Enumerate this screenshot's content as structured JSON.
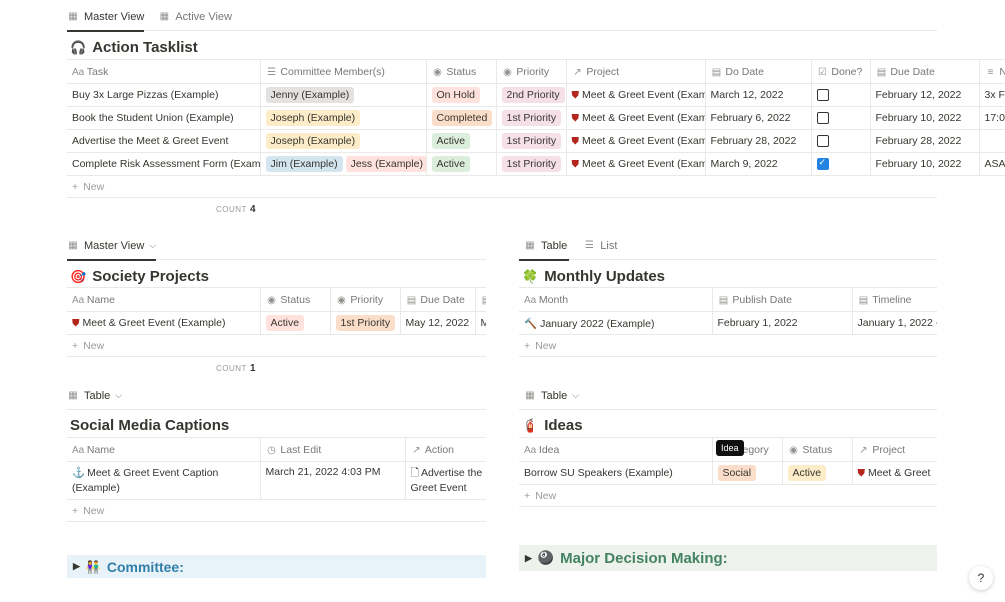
{
  "top_tabs": [
    {
      "label": "Master View",
      "icon": "table-icon"
    },
    {
      "label": "Active View",
      "icon": "table-icon"
    }
  ],
  "tasks": {
    "title": "Action Tasklist",
    "columns": [
      "Task",
      "Committee Member(s)",
      "Status",
      "Priority",
      "Project",
      "Do Date",
      "Done?",
      "Due Date",
      "N"
    ],
    "rows": [
      {
        "task": "Buy 3x Large Pizzas (Example)",
        "members": [
          "Jenny (Example)"
        ],
        "status": "On Hold",
        "priority": "2nd Priority",
        "project": "Meet & Greet Event (Exam",
        "do_date": "March 12, 2022",
        "done": false,
        "due_date": "February 12, 2022",
        "notes": "3x F"
      },
      {
        "task": "Book the Student Union (Example)",
        "members": [
          "Joseph (Example)"
        ],
        "status": "Completed",
        "priority": "1st Priority",
        "project": "Meet & Greet Event (Exam",
        "do_date": "February 6, 2022",
        "done": false,
        "due_date": "February 10, 2022",
        "notes": "17:0"
      },
      {
        "task": "Advertise the Meet & Greet Event",
        "members": [
          "Joseph (Example)"
        ],
        "status": "Active",
        "priority": "1st Priority",
        "project": "Meet & Greet Event (Exam",
        "do_date": "February 28, 2022",
        "done": false,
        "due_date": "February 28, 2022",
        "notes": ""
      },
      {
        "task": "Complete Risk Assessment Form (Examp",
        "members": [
          "Jim (Example)",
          "Jess (Example)"
        ],
        "status": "Active",
        "priority": "1st Priority",
        "project": "Meet & Greet Event (Exam",
        "do_date": "March 9, 2022",
        "done": true,
        "due_date": "February 10, 2022",
        "notes": "ASA"
      }
    ],
    "new_label": "New",
    "count_label": "COUNT",
    "count": "4"
  },
  "projects": {
    "view_label": "Master View",
    "title": "Society Projects",
    "columns": [
      "Name",
      "Status",
      "Priority",
      "Due Date"
    ],
    "rows": [
      {
        "name": "Meet & Greet Event (Example)",
        "status": "Active",
        "priority": "1st Priority",
        "due_date": "May 12, 2022",
        "extra": "Ma"
      }
    ],
    "new_label": "New",
    "count_label": "COUNT",
    "count": "1"
  },
  "monthly": {
    "tabs": [
      "Table",
      "List"
    ],
    "title": "Monthly Updates",
    "columns": [
      "Month",
      "Publish Date",
      "Timeline"
    ],
    "rows": [
      {
        "month": "January 2022 (Example)",
        "publish": "February 1, 2022",
        "timeline": "January 1, 2022 -"
      }
    ],
    "new_label": "New"
  },
  "captions": {
    "view_label": "Table",
    "title": "Social Media Captions",
    "columns": [
      "Name",
      "Last Edit",
      "Action"
    ],
    "rows": [
      {
        "name_line1": "Meet & Greet Event Caption",
        "name_line2": "(Example)",
        "last_edit": "March 21, 2022 4:03 PM",
        "action_line1": "Advertise the",
        "action_line2": "Greet Event"
      }
    ],
    "new_label": "New"
  },
  "ideas": {
    "view_label": "Table",
    "title": "Ideas",
    "columns": [
      "Idea",
      "egory",
      "Status",
      "Project"
    ],
    "tooltip": "Idea",
    "rows": [
      {
        "idea": "Borrow SU Speakers (Example)",
        "category": "Social",
        "status": "Active",
        "project": "Meet & Greet"
      }
    ],
    "new_label": "New"
  },
  "committee_toggle": "Committee:",
  "decision_toggle": "Major Decision Making:",
  "help_label": "?",
  "colors": {
    "committee_bg": "#e7f3f8",
    "committee_text": "#337ea9",
    "decision_bg": "#edf3ec",
    "decision_text": "#448361"
  }
}
